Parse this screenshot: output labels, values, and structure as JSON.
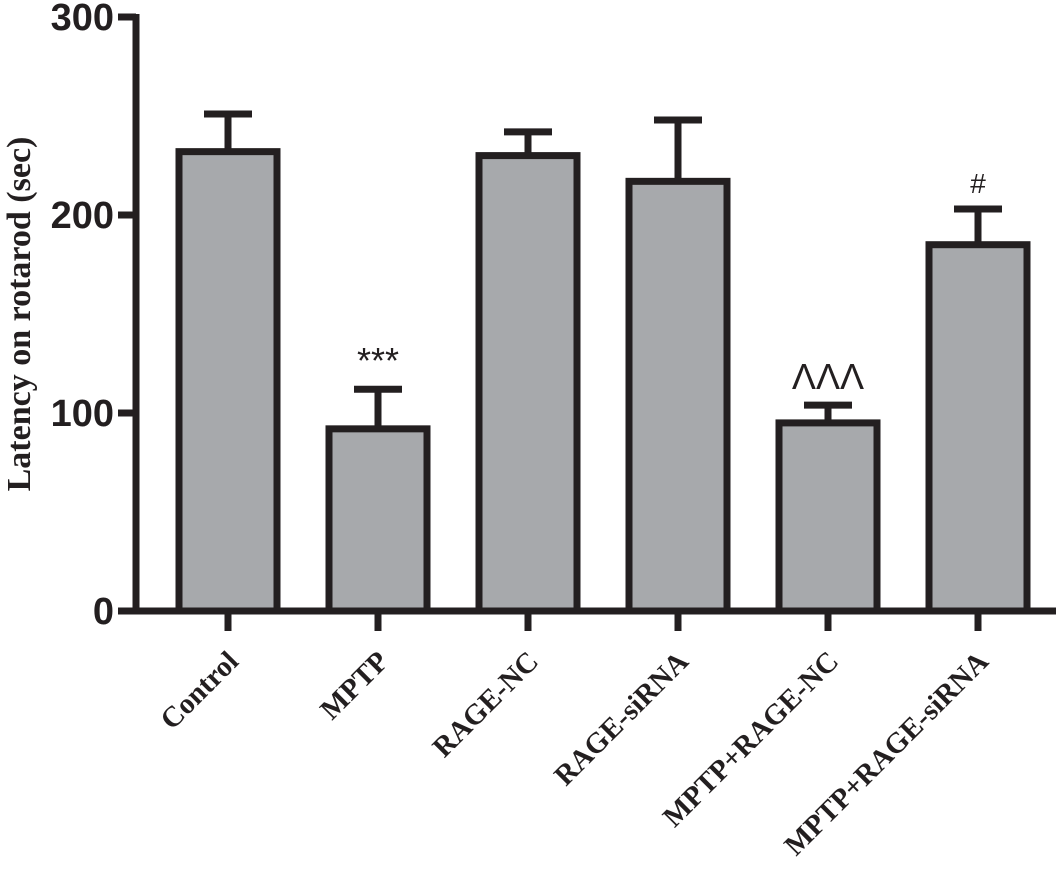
{
  "chart_data": {
    "type": "bar",
    "categories": [
      "Control",
      "MPTP",
      "RAGE-NC",
      "RAGE-siRNA",
      "MPTP+RAGE-NC",
      "MPTP+RAGE-siRNA"
    ],
    "values": [
      232,
      92,
      230,
      217,
      95,
      185
    ],
    "errors": [
      19,
      20,
      12,
      31,
      9,
      18
    ],
    "annotations": [
      "",
      "***",
      "",
      "",
      "ΛΛΛ",
      "#"
    ],
    "title": "",
    "xlabel": "",
    "ylabel": "Latency on rotarod (sec)",
    "ylim": [
      0,
      300
    ],
    "yticks": [
      0,
      100,
      200,
      300
    ],
    "bar_color": "#a7a9ac",
    "edge_color": "#231f20",
    "grid": false,
    "legend": "none"
  }
}
